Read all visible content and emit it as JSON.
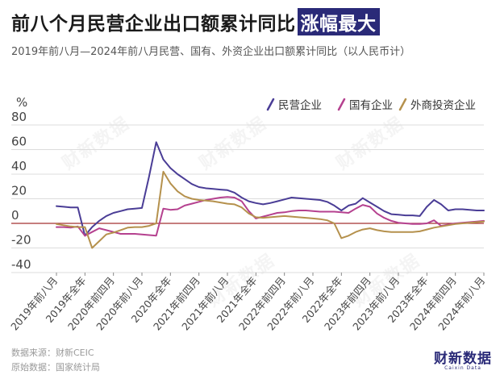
{
  "header": {
    "title_main": "前八个月民营企业出口额累计同比",
    "title_highlight": "涨幅最大",
    "subtitle": "2019年前八月—2024年前八月民营、国有、外资企业出口额累计同比（以人民币计）"
  },
  "footer": {
    "source": "数据来源：财新CEIC",
    "origin": "原始数据：国家统计局"
  },
  "brand": {
    "name": "财新数据",
    "sub": "Caixin Data"
  },
  "watermark": "财新数据",
  "colors": {
    "series_private": "#4a3d96",
    "series_state": "#b5418f",
    "series_foreign": "#b5914d",
    "zero_line": "#a33030",
    "grid": "#dcdcdc",
    "highlight_bg": "#2a2a78"
  },
  "chart_data": {
    "type": "line",
    "y_unit": "%",
    "ylim": [
      -40,
      80
    ],
    "y_ticks": [
      80,
      60,
      40,
      20,
      0,
      -20,
      -40
    ],
    "grid": true,
    "legend_position": "top-right",
    "x_tick_labels": [
      "2019年前八月",
      "2019年全年",
      "2020年前四月",
      "2020年前八月",
      "2020年全年",
      "2021年前四月",
      "2021年前八月",
      "2021年全年",
      "2022年前四月",
      "2022年前八月",
      "2022年全年",
      "2023年前四月",
      "2023年前八月",
      "2023年全年",
      "2024年前四月",
      "2024年前八月"
    ],
    "x_tick_positions": [
      0,
      4,
      8,
      12,
      16,
      20,
      24,
      28,
      32,
      36,
      40,
      44,
      48,
      52,
      56,
      60
    ],
    "series": [
      {
        "name": "民营企业",
        "color": "#4a3d96",
        "values": [
          14,
          13.5,
          13,
          13,
          -10,
          -3,
          2,
          6,
          8.5,
          10,
          11.5,
          12,
          12.5,
          38,
          66,
          52,
          45,
          40,
          36,
          32,
          29.5,
          28.5,
          28,
          27.5,
          27,
          25,
          21,
          18,
          16.5,
          15.5,
          16.5,
          18,
          19.5,
          21,
          20.5,
          20,
          19.5,
          19,
          17.5,
          14.5,
          10.5,
          14.5,
          16,
          20.5,
          17,
          13.5,
          10,
          7.5,
          7,
          6.5,
          6.5,
          6,
          13.5,
          19,
          15.5,
          10.5,
          11.5,
          11.5,
          11,
          10.5,
          10.5
        ]
      },
      {
        "name": "国有企业",
        "color": "#b5418f",
        "values": [
          -3,
          -3,
          -3.5,
          -2.5,
          -10,
          -7,
          -4,
          -5.5,
          -7,
          -8.5,
          -8.5,
          -8.5,
          -9,
          -9.5,
          -10,
          12,
          11,
          11.5,
          14.5,
          16,
          17.5,
          19,
          20,
          21,
          21.5,
          21,
          18,
          10,
          4,
          5.5,
          7,
          8.5,
          9,
          10,
          10.5,
          10.5,
          10,
          9.5,
          9.5,
          9.5,
          9,
          8.5,
          12,
          15,
          13.5,
          8,
          4.5,
          2,
          0.5,
          0,
          -0.5,
          -0.5,
          0,
          2.5,
          -2,
          -1,
          0,
          0.5,
          1,
          1.5,
          2
        ]
      },
      {
        "name": "外商投资企业",
        "color": "#b5914d",
        "values": [
          -0.5,
          -1.5,
          -2.5,
          -3,
          -3,
          -20,
          -14.5,
          -9,
          -7.5,
          -5.5,
          -3.5,
          -3,
          -3,
          -2,
          0,
          42,
          32.5,
          26,
          22,
          20,
          19,
          18.5,
          18,
          17,
          16,
          15.5,
          13,
          8,
          5,
          4.5,
          5,
          5.5,
          6,
          5.5,
          5,
          4.5,
          4,
          3.5,
          2.5,
          0,
          -12,
          -10,
          -7,
          -5,
          -4,
          -5.5,
          -6.5,
          -7,
          -7,
          -7,
          -7,
          -6.5,
          -5,
          -3.5,
          -2.5,
          -1.5,
          -0.5,
          0,
          0.5,
          1,
          1.5
        ]
      }
    ]
  }
}
